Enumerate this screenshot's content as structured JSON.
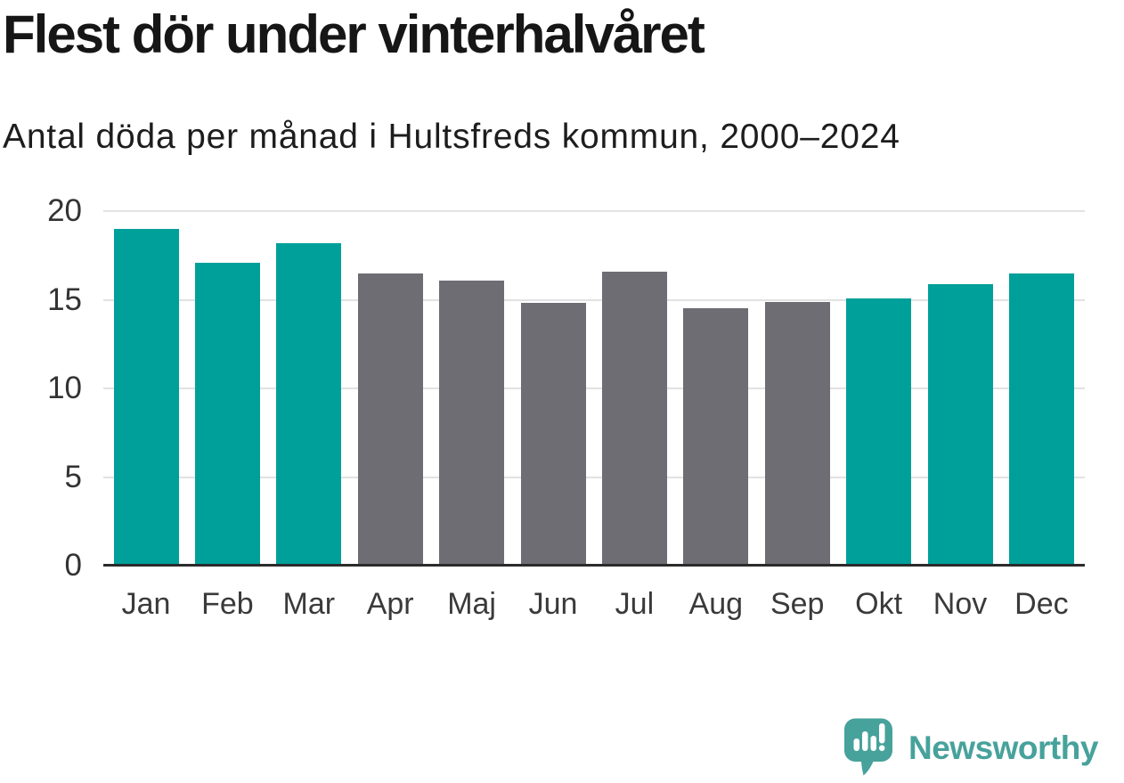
{
  "chart_data": {
    "type": "bar",
    "title": "Flest dör under vinterhalvåret",
    "subtitle": "Antal döda per månad i Hultsfreds kommun, 2000–2024",
    "categories": [
      "Jan",
      "Feb",
      "Mar",
      "Apr",
      "Maj",
      "Jun",
      "Jul",
      "Aug",
      "Sep",
      "Okt",
      "Nov",
      "Dec"
    ],
    "values": [
      19.0,
      17.1,
      18.2,
      16.5,
      16.1,
      14.8,
      16.6,
      14.5,
      14.9,
      15.1,
      15.9,
      16.5
    ],
    "bar_colors": [
      "#00A09A",
      "#00A09A",
      "#00A09A",
      "#6E6D73",
      "#6E6D73",
      "#6E6D73",
      "#6E6D73",
      "#6E6D73",
      "#6E6D73",
      "#00A09A",
      "#00A09A",
      "#00A09A"
    ],
    "highlight_color": "#00A09A",
    "muted_color": "#6E6D73",
    "grid_color": "#E2E2E2",
    "axis_color": "#2B2B2B",
    "xlabel": "",
    "ylabel": "",
    "ylim": [
      0,
      20
    ],
    "yticks": [
      0,
      5,
      10,
      15,
      20
    ],
    "grid": "horizontal",
    "legend_position": "none"
  },
  "footer": {
    "brand": "Newsworthy",
    "brand_color": "#47A29B",
    "logo_icon": "speech-bubble-bar-chart-icon"
  }
}
